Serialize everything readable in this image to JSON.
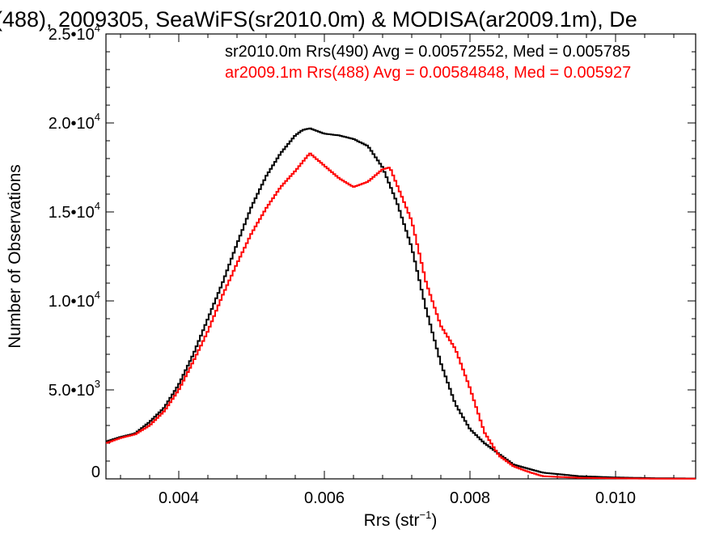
{
  "chart_data": {
    "type": "line",
    "title": "(488), 2009305, SeaWiFS(sr2010.0m) & MODISA(ar2009.1m), De",
    "xlabel": "Rrs (str",
    "xlabel_sup": "−1",
    "xlabel_end": ")",
    "ylabel": "Number of Observations",
    "xlim": [
      0.003,
      0.0111
    ],
    "ylim": [
      0,
      25000
    ],
    "grid": false,
    "x_ticks": [
      {
        "value": 0.004,
        "label": "0.004"
      },
      {
        "value": 0.006,
        "label": "0.006"
      },
      {
        "value": 0.008,
        "label": "0.008"
      },
      {
        "value": 0.01,
        "label": "0.010"
      }
    ],
    "y_ticks": [
      {
        "value": 0,
        "base": "0",
        "exp": ""
      },
      {
        "value": 5000,
        "base": "5.0•10",
        "exp": "3"
      },
      {
        "value": 10000,
        "base": "1.0•10",
        "exp": "4"
      },
      {
        "value": 15000,
        "base": "1.5•10",
        "exp": "4"
      },
      {
        "value": 20000,
        "base": "2.0•10",
        "exp": "4"
      },
      {
        "value": 25000,
        "base": "2.5•10",
        "exp": "4"
      }
    ],
    "series": [
      {
        "name": "sr2010.0m Rrs(490)",
        "color": "#000000",
        "legend": "sr2010.0m Rrs(490) Avg = 0.00572552, Med = 0.005785",
        "points": [
          [
            0.003,
            2100
          ],
          [
            0.0032,
            2350
          ],
          [
            0.0034,
            2550
          ],
          [
            0.0036,
            3200
          ],
          [
            0.0038,
            4000
          ],
          [
            0.004,
            5300
          ],
          [
            0.0042,
            7000
          ],
          [
            0.0044,
            9000
          ],
          [
            0.0046,
            11000
          ],
          [
            0.0048,
            13200
          ],
          [
            0.005,
            15300
          ],
          [
            0.0052,
            17000
          ],
          [
            0.0054,
            18300
          ],
          [
            0.0056,
            19300
          ],
          [
            0.0057,
            19600
          ],
          [
            0.0058,
            19700
          ],
          [
            0.006,
            19400
          ],
          [
            0.0062,
            19300
          ],
          [
            0.0064,
            19100
          ],
          [
            0.0066,
            18700
          ],
          [
            0.0068,
            17500
          ],
          [
            0.007,
            15500
          ],
          [
            0.0072,
            13000
          ],
          [
            0.0074,
            9500
          ],
          [
            0.0076,
            6500
          ],
          [
            0.0078,
            4200
          ],
          [
            0.008,
            2800
          ],
          [
            0.0082,
            2000
          ],
          [
            0.0084,
            1400
          ],
          [
            0.0086,
            800
          ],
          [
            0.009,
            350
          ],
          [
            0.0095,
            150
          ],
          [
            0.01,
            80
          ],
          [
            0.0105,
            40
          ],
          [
            0.0111,
            20
          ]
        ]
      },
      {
        "name": "ar2009.1m Rrs(488)",
        "color": "#ff0000",
        "legend": "ar2009.1m Rrs(488) Avg = 0.00584848, Med = 0.005927",
        "points": [
          [
            0.003,
            2000
          ],
          [
            0.0032,
            2300
          ],
          [
            0.0034,
            2500
          ],
          [
            0.0036,
            3000
          ],
          [
            0.0038,
            3800
          ],
          [
            0.004,
            5000
          ],
          [
            0.0042,
            6600
          ],
          [
            0.0044,
            8300
          ],
          [
            0.0046,
            10300
          ],
          [
            0.0048,
            12100
          ],
          [
            0.005,
            13800
          ],
          [
            0.0052,
            15200
          ],
          [
            0.0054,
            16400
          ],
          [
            0.0056,
            17300
          ],
          [
            0.0058,
            18300
          ],
          [
            0.006,
            17600
          ],
          [
            0.0062,
            16900
          ],
          [
            0.0064,
            16400
          ],
          [
            0.0066,
            16700
          ],
          [
            0.0068,
            17400
          ],
          [
            0.0069,
            17500
          ],
          [
            0.007,
            16500
          ],
          [
            0.0072,
            14500
          ],
          [
            0.0074,
            11000
          ],
          [
            0.0076,
            8600
          ],
          [
            0.0078,
            7300
          ],
          [
            0.008,
            5100
          ],
          [
            0.0082,
            2600
          ],
          [
            0.0084,
            1300
          ],
          [
            0.0086,
            700
          ],
          [
            0.0088,
            400
          ],
          [
            0.009,
            150
          ],
          [
            0.0095,
            60
          ],
          [
            0.01,
            30
          ],
          [
            0.0105,
            15
          ],
          [
            0.0111,
            10
          ]
        ]
      }
    ]
  }
}
